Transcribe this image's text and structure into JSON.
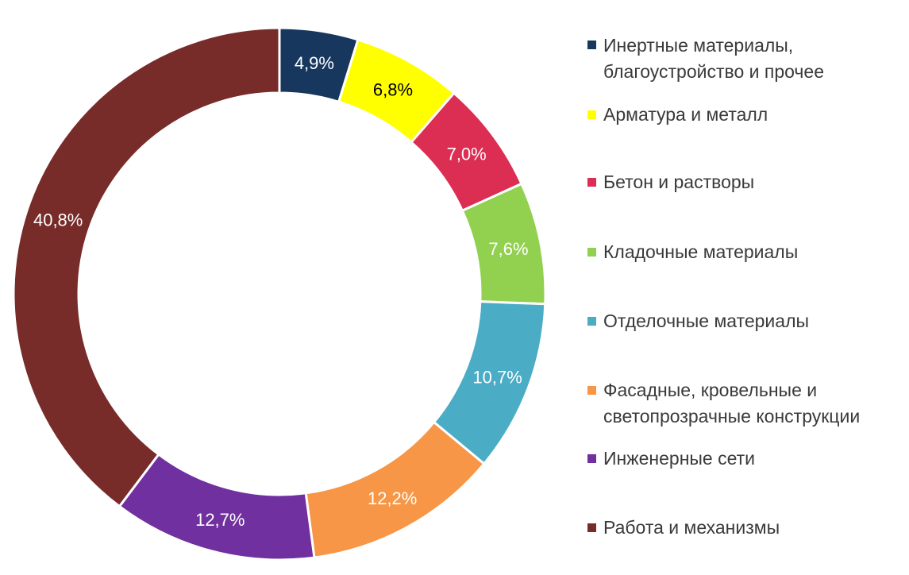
{
  "chart_data": {
    "type": "pie",
    "variant": "donut",
    "legend_position": "right",
    "slices": [
      {
        "name": "Инертные материалы, благоустройство и прочее",
        "label": "4,9%",
        "value": 4.9,
        "color": "#17375e",
        "label_color": "#ffffff"
      },
      {
        "name": "Арматура и металл",
        "label": "6,8%",
        "value": 6.8,
        "color": "#ffff00",
        "label_color": "#000000"
      },
      {
        "name": "Бетон и растворы",
        "label": "7,0%",
        "value": 7.0,
        "color": "#dc2d52",
        "label_color": "#ffffff"
      },
      {
        "name": "Кладочные материалы",
        "label": "7,6%",
        "value": 7.6,
        "color": "#92d050",
        "label_color": "#ffffff"
      },
      {
        "name": "Отделочные материалы",
        "label": "10,7%",
        "value": 10.7,
        "color": "#4bacc6",
        "label_color": "#ffffff"
      },
      {
        "name": "Фасадные, кровельные и светопрозрачные конструкции",
        "label": "12,2%",
        "value": 12.2,
        "color": "#f79646",
        "label_color": "#ffffff"
      },
      {
        "name": "Инженерные сети",
        "label": "12,7%",
        "value": 12.7,
        "color": "#7030a0",
        "label_color": "#ffffff"
      },
      {
        "name": "Работа и механизмы",
        "label": "40,8%",
        "value": 40.8,
        "color": "#772c2a",
        "label_color": "#ffffff"
      }
    ]
  },
  "legend": {
    "items": [
      {
        "lines": [
          "Инертные материалы,",
          "благоустройство и прочее"
        ]
      },
      {
        "lines": [
          "Арматура и металл"
        ]
      },
      {
        "lines": [
          "Бетон и растворы"
        ]
      },
      {
        "lines": [
          "Кладочные материалы"
        ]
      },
      {
        "lines": [
          "Отделочные материалы"
        ]
      },
      {
        "lines": [
          "Фасадные, кровельные и",
          "светопрозрачные конструкции"
        ]
      },
      {
        "lines": [
          "Инженерные сети"
        ]
      },
      {
        "lines": [
          "Работа и механизмы"
        ]
      }
    ]
  }
}
